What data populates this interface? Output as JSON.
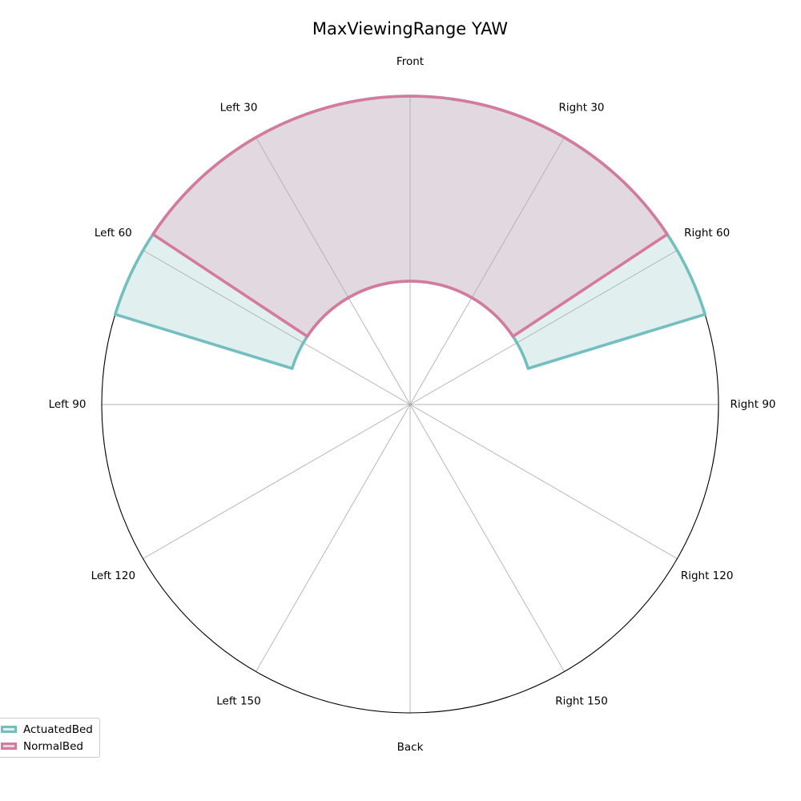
{
  "chart_data": {
    "type": "polar-area",
    "title": "MaxViewingRange YAW",
    "angle_labels": [
      "Front",
      "Right 30",
      "Right 60",
      "Right 90",
      "Right 120",
      "Right 150",
      "Back",
      "Left 150",
      "Left 120",
      "Left 90",
      "Left 60",
      "Left 30"
    ],
    "angle_values_deg": [
      0,
      30,
      60,
      90,
      120,
      150,
      180,
      210,
      240,
      270,
      300,
      330
    ],
    "direction": "clockwise",
    "zero_location": "top",
    "grid": true,
    "legend_position": "lower-left",
    "series": [
      {
        "name": "ActuatedBed",
        "color": "#73bfbf",
        "fill": "#e1efef",
        "inner_radius": 0.4,
        "outer_radius": 1.0,
        "angle_range_deg": [
          -73,
          73
        ]
      },
      {
        "name": "NormalBed",
        "color": "#d57a9a",
        "fill": "#e1d8e0",
        "inner_radius": 0.4,
        "outer_radius": 1.0,
        "angle_range_deg": [
          -56.5,
          56.5
        ]
      }
    ]
  }
}
